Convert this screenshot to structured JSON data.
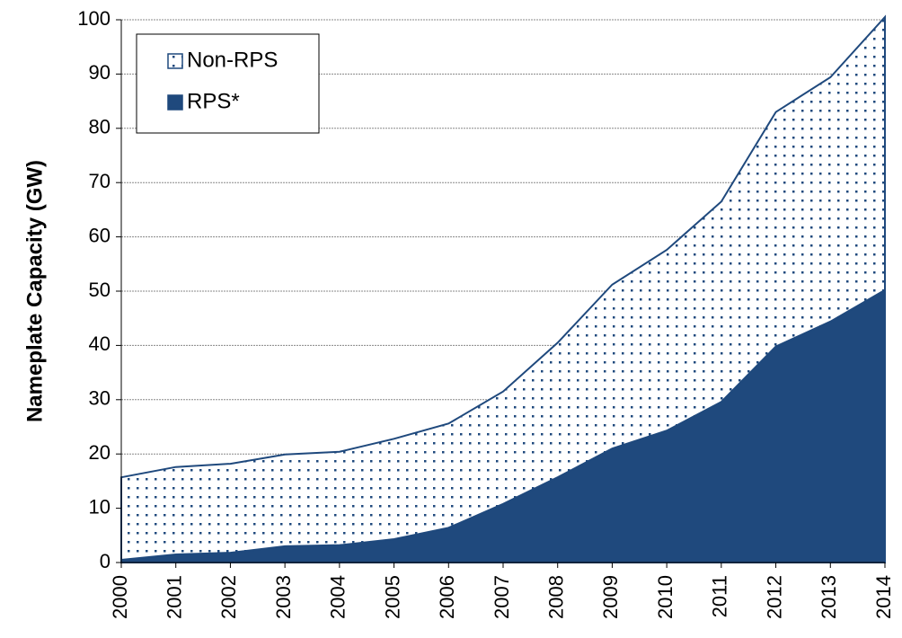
{
  "chart_data": {
    "type": "stacked_area",
    "y_label": "Nameplate Capacity (GW)",
    "categories": [
      "2000",
      "2001",
      "2002",
      "2003",
      "2004",
      "2005",
      "2006",
      "2007",
      "2008",
      "2009",
      "2010",
      "2011",
      "2012",
      "2013",
      "2014"
    ],
    "series": [
      {
        "name": "RPS*",
        "color": "#1f497d",
        "values": [
          0.5,
          1.5,
          1.8,
          3.0,
          3.2,
          4.3,
          6.4,
          10.8,
          15.7,
          21.0,
          24.3,
          29.6,
          39.8,
          44.4,
          50.2
        ]
      },
      {
        "name": "Non-RPS",
        "color": "#1f497d",
        "pattern": "dots",
        "values": [
          15.2,
          16.1,
          16.4,
          16.9,
          17.2,
          18.5,
          19.2,
          20.7,
          24.8,
          30.2,
          33.3,
          36.9,
          43.2,
          45.0,
          50.3
        ]
      }
    ],
    "ylim": [
      0,
      100
    ],
    "yticks": [
      0,
      10,
      20,
      30,
      40,
      50,
      60,
      70,
      80,
      90,
      100
    ],
    "grid": true,
    "legend": "upper left"
  }
}
